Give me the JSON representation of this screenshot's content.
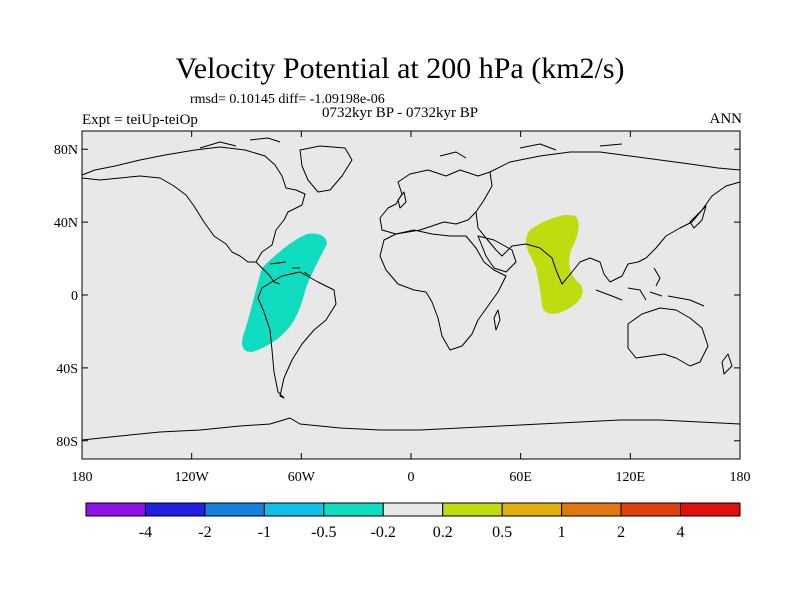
{
  "header": {
    "title": "Velocity Potential at 200 hPa (km2/s)",
    "stats": "rmsd= 0.10145 diff= -1.09198e-06",
    "experiment": "Expt = teiUp-teiOp",
    "period": "0732kyr BP - 0732kyr BP",
    "season": "ANN"
  },
  "map": {
    "background_color": "#e8e8e8",
    "coast_color": "#000000",
    "lat_ticks": [
      "80N",
      "40N",
      "0",
      "40S",
      "80S"
    ],
    "lon_ticks": [
      "180",
      "120W",
      "60W",
      "0",
      "60E",
      "120E",
      "180"
    ],
    "lat_range": [
      -90,
      90
    ],
    "lon_range": [
      -180,
      180
    ]
  },
  "anomalies": [
    {
      "name": "south-america-negative-anomaly",
      "color": "#10dcc0",
      "level": "-0.5 to -0.2"
    },
    {
      "name": "indian-ocean-positive-anomaly",
      "color": "#c0dc10",
      "level": "0.2 to 0.5"
    }
  ],
  "colorbar": {
    "colors": [
      "#9010e8",
      "#2020e0",
      "#1480e0",
      "#10c0e8",
      "#10dcc0",
      "#e8e8e8",
      "#c0dc10",
      "#e0b010",
      "#e07810",
      "#e04010",
      "#e01010"
    ],
    "labels": [
      "-4",
      "-2",
      "-1",
      "-0.5",
      "-0.2",
      "0.2",
      "0.5",
      "1",
      "2",
      "4"
    ]
  }
}
